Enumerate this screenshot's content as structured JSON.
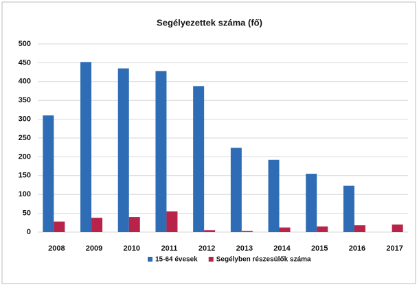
{
  "chart_data": {
    "type": "bar",
    "title": "Segélyezettek száma (fő)",
    "categories": [
      "2008",
      "2009",
      "2010",
      "2011",
      "2012",
      "2013",
      "2014",
      "2015",
      "2016",
      "2017"
    ],
    "series": [
      {
        "name": "15-64 évesek",
        "color": "#2e6db5",
        "values": [
          310,
          452,
          435,
          428,
          388,
          224,
          192,
          155,
          123,
          null
        ]
      },
      {
        "name": "Segélyben részesülők száma",
        "color": "#b8234a",
        "values": [
          28,
          38,
          40,
          55,
          5,
          3,
          12,
          15,
          18,
          20
        ]
      }
    ],
    "ylim": [
      0,
      500
    ],
    "yticks": [
      0,
      50,
      100,
      150,
      200,
      250,
      300,
      350,
      400,
      450,
      500
    ],
    "grid": true
  }
}
